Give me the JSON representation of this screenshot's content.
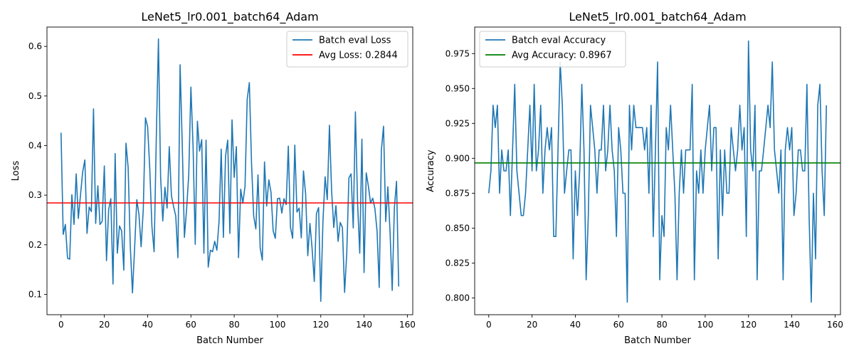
{
  "chart_data": [
    {
      "type": "line",
      "title": "LeNet5_lr0.001_batch64_Adam",
      "xlabel": "Batch Number",
      "ylabel": "Loss",
      "xlim": [
        -6.5,
        162.5
      ],
      "ylim": [
        0.059,
        0.639
      ],
      "xticks": [
        0,
        20,
        40,
        60,
        80,
        100,
        120,
        140,
        160
      ],
      "yticks": [
        0.1,
        0.2,
        0.3,
        0.4,
        0.5,
        0.6
      ],
      "ytick_labels": [
        "0.1",
        "0.2",
        "0.3",
        "0.4",
        "0.5",
        "0.6"
      ],
      "legend_position": "top-right",
      "series": [
        {
          "name": "Batch eval Loss",
          "color": "#1f77b4",
          "x_start": 0,
          "values": [
            0.426,
            0.221,
            0.241,
            0.173,
            0.171,
            0.301,
            0.241,
            0.343,
            0.253,
            0.301,
            0.347,
            0.371,
            0.223,
            0.276,
            0.267,
            0.474,
            0.243,
            0.319,
            0.241,
            0.247,
            0.359,
            0.168,
            0.271,
            0.293,
            0.121,
            0.384,
            0.183,
            0.238,
            0.228,
            0.149,
            0.405,
            0.356,
            0.197,
            0.103,
            0.194,
            0.291,
            0.261,
            0.196,
            0.272,
            0.456,
            0.438,
            0.353,
            0.236,
            0.186,
            0.413,
            0.615,
            0.337,
            0.248,
            0.316,
            0.274,
            0.398,
            0.299,
            0.277,
            0.258,
            0.174,
            0.563,
            0.403,
            0.215,
            0.271,
            0.341,
            0.518,
            0.398,
            0.201,
            0.449,
            0.389,
            0.412,
            0.183,
            0.411,
            0.155,
            0.189,
            0.186,
            0.207,
            0.189,
            0.247,
            0.393,
            0.215,
            0.379,
            0.411,
            0.223,
            0.452,
            0.336,
            0.398,
            0.174,
            0.312,
            0.284,
            0.318,
            0.493,
            0.527,
            0.366,
            0.258,
            0.232,
            0.341,
            0.194,
            0.169,
            0.367,
            0.278,
            0.331,
            0.306,
            0.228,
            0.213,
            0.293,
            0.294,
            0.264,
            0.293,
            0.281,
            0.399,
            0.235,
            0.213,
            0.401,
            0.266,
            0.274,
            0.214,
            0.349,
            0.303,
            0.178,
            0.243,
            0.192,
            0.126,
            0.263,
            0.275,
            0.086,
            0.247,
            0.337,
            0.291,
            0.441,
            0.309,
            0.235,
            0.279,
            0.207,
            0.245,
            0.235,
            0.104,
            0.183,
            0.335,
            0.343,
            0.234,
            0.468,
            0.285,
            0.183,
            0.413,
            0.144,
            0.345,
            0.318,
            0.284,
            0.294,
            0.273,
            0.228,
            0.114,
            0.391,
            0.439,
            0.247,
            0.317,
            0.226,
            0.108,
            0.274,
            0.328,
            0.116
          ]
        },
        {
          "name": "Avg Loss: 0.2844",
          "color": "#ff0000",
          "type": "hline",
          "value": 0.2844
        }
      ]
    },
    {
      "type": "line",
      "title": "LeNet5_lr0.001_batch64_Adam",
      "xlabel": "Batch Number",
      "ylabel": "Accuracy",
      "xlim": [
        -6.5,
        162.5
      ],
      "ylim": [
        0.788,
        0.994
      ],
      "xticks": [
        0,
        20,
        40,
        60,
        80,
        100,
        120,
        140,
        160
      ],
      "yticks": [
        0.8,
        0.825,
        0.85,
        0.875,
        0.9,
        0.925,
        0.95,
        0.975
      ],
      "ytick_labels": [
        "0.800",
        "0.825",
        "0.850",
        "0.875",
        "0.900",
        "0.925",
        "0.950",
        "0.975"
      ],
      "legend_position": "top-left",
      "series": [
        {
          "name": "Batch eval Accuracy",
          "color": "#1f77b4",
          "x_start": 0,
          "values": [
            0.875,
            0.891,
            0.938,
            0.922,
            0.938,
            0.875,
            0.906,
            0.891,
            0.891,
            0.906,
            0.859,
            0.906,
            0.953,
            0.891,
            0.875,
            0.859,
            0.859,
            0.875,
            0.906,
            0.938,
            0.891,
            0.953,
            0.891,
            0.906,
            0.938,
            0.875,
            0.906,
            0.922,
            0.906,
            0.922,
            0.844,
            0.844,
            0.906,
            0.969,
            0.938,
            0.875,
            0.891,
            0.906,
            0.906,
            0.828,
            0.891,
            0.859,
            0.891,
            0.953,
            0.906,
            0.813,
            0.859,
            0.938,
            0.922,
            0.906,
            0.875,
            0.906,
            0.906,
            0.938,
            0.891,
            0.906,
            0.938,
            0.906,
            0.891,
            0.844,
            0.922,
            0.906,
            0.875,
            0.875,
            0.797,
            0.938,
            0.906,
            0.938,
            0.922,
            0.922,
            0.922,
            0.922,
            0.906,
            0.922,
            0.875,
            0.938,
            0.844,
            0.906,
            0.969,
            0.813,
            0.859,
            0.844,
            0.922,
            0.906,
            0.938,
            0.906,
            0.875,
            0.813,
            0.875,
            0.906,
            0.875,
            0.906,
            0.906,
            0.906,
            0.953,
            0.813,
            0.891,
            0.875,
            0.906,
            0.875,
            0.906,
            0.922,
            0.938,
            0.891,
            0.922,
            0.922,
            0.828,
            0.906,
            0.859,
            0.906,
            0.875,
            0.875,
            0.922,
            0.906,
            0.891,
            0.906,
            0.938,
            0.906,
            0.922,
            0.844,
            0.984,
            0.906,
            0.891,
            0.938,
            0.813,
            0.891,
            0.891,
            0.906,
            0.922,
            0.938,
            0.922,
            0.969,
            0.906,
            0.891,
            0.875,
            0.906,
            0.813,
            0.906,
            0.922,
            0.906,
            0.922,
            0.859,
            0.875,
            0.906,
            0.906,
            0.891,
            0.891,
            0.953,
            0.859,
            0.797,
            0.875,
            0.828,
            0.938,
            0.953,
            0.891,
            0.859,
            0.938
          ]
        },
        {
          "name": "Avg Accuracy: 0.8967",
          "color": "#008000",
          "type": "hline",
          "value": 0.8967
        }
      ]
    }
  ]
}
